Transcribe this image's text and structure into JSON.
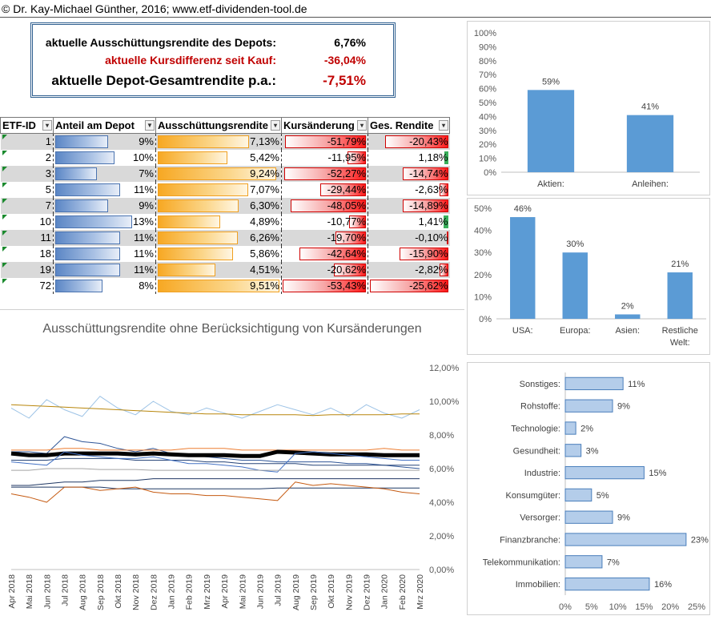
{
  "header": {
    "copyright": "© Dr. Kay-Michael Günther, 2016; www.etf-dividenden-tool.de"
  },
  "summary": {
    "rows": [
      {
        "label": "aktuelle Ausschüttungsrendite des Depots:",
        "value": "6,76%"
      },
      {
        "label": "aktuelle Kursdifferenz seit Kauf:",
        "value": "-36,04%"
      },
      {
        "label": "aktuelle Depot-Gesamtrendite p.a.:",
        "value": "-7,51%"
      }
    ]
  },
  "table": {
    "headers": [
      "ETF-ID",
      "Anteil am Depot",
      "Ausschüttungsrendite",
      "Kursänderung",
      "Ges. Rendite"
    ],
    "rows": [
      {
        "id": "1",
        "anteil": "9%",
        "anteil_v": 9,
        "aus": "7,13%",
        "aus_v": 7.13,
        "kurs": "-51,79%",
        "kurs_v": -51.79,
        "ges": "-20,43%",
        "ges_v": -20.43
      },
      {
        "id": "2",
        "anteil": "10%",
        "anteil_v": 10,
        "aus": "5,42%",
        "aus_v": 5.42,
        "kurs": "-11,95%",
        "kurs_v": -11.95,
        "ges": "1,18%",
        "ges_v": 1.18
      },
      {
        "id": "3",
        "anteil": "7%",
        "anteil_v": 7,
        "aus": "9,24%",
        "aus_v": 9.24,
        "kurs": "-52,27%",
        "kurs_v": -52.27,
        "ges": "-14,74%",
        "ges_v": -14.74
      },
      {
        "id": "5",
        "anteil": "11%",
        "anteil_v": 11,
        "aus": "7,07%",
        "aus_v": 7.07,
        "kurs": "-29,44%",
        "kurs_v": -29.44,
        "ges": "-2,63%",
        "ges_v": -2.63
      },
      {
        "id": "7",
        "anteil": "9%",
        "anteil_v": 9,
        "aus": "6,30%",
        "aus_v": 6.3,
        "kurs": "-48,05%",
        "kurs_v": -48.05,
        "ges": "-14,89%",
        "ges_v": -14.89
      },
      {
        "id": "10",
        "anteil": "13%",
        "anteil_v": 13,
        "aus": "4,89%",
        "aus_v": 4.89,
        "kurs": "-10,77%",
        "kurs_v": -10.77,
        "ges": "1,41%",
        "ges_v": 1.41
      },
      {
        "id": "11",
        "anteil": "11%",
        "anteil_v": 11,
        "aus": "6,26%",
        "aus_v": 6.26,
        "kurs": "-19,70%",
        "kurs_v": -19.7,
        "ges": "-0,10%",
        "ges_v": -0.1
      },
      {
        "id": "18",
        "anteil": "11%",
        "anteil_v": 11,
        "aus": "5,86%",
        "aus_v": 5.86,
        "kurs": "-42,64%",
        "kurs_v": -42.64,
        "ges": "-15,90%",
        "ges_v": -15.9
      },
      {
        "id": "19",
        "anteil": "11%",
        "anteil_v": 11,
        "aus": "4,51%",
        "aus_v": 4.51,
        "kurs": "-20,62%",
        "kurs_v": -20.62,
        "ges": "-2,82%",
        "ges_v": -2.82
      },
      {
        "id": "72",
        "anteil": "8%",
        "anteil_v": 8,
        "aus": "9,51%",
        "aus_v": 9.51,
        "kurs": "-53,43%",
        "kurs_v": -53.43,
        "ges": "-25,62%",
        "ges_v": -25.62
      }
    ]
  },
  "colors": {
    "bar_blue": "#5b9bd5",
    "line_black": "#000000",
    "negative_red": "#c00000"
  },
  "chart_data": [
    {
      "type": "bar",
      "categories": [
        "Aktien:",
        "Anleihen:"
      ],
      "values": [
        59,
        41
      ],
      "labels": [
        "59%",
        "41%"
      ],
      "ylim": [
        0,
        100
      ],
      "yticks": [
        "0%",
        "10%",
        "20%",
        "30%",
        "40%",
        "50%",
        "60%",
        "70%",
        "80%",
        "90%",
        "100%"
      ]
    },
    {
      "type": "bar",
      "categories": [
        "USA:",
        "Europa:",
        "Asien:",
        "Restliche Welt:"
      ],
      "values": [
        46,
        30,
        2,
        21
      ],
      "labels": [
        "46%",
        "30%",
        "2%",
        "21%"
      ],
      "ylim": [
        0,
        50
      ],
      "yticks": [
        "0%",
        "10%",
        "20%",
        "30%",
        "40%",
        "50%"
      ]
    },
    {
      "type": "bar",
      "orientation": "horizontal",
      "categories": [
        "Sonstiges:",
        "Rohstoffe:",
        "Technologie:",
        "Gesundheit:",
        "Industrie:",
        "Konsumgüter:",
        "Versorger:",
        "Finanzbranche:",
        "Telekommunikation:",
        "Immobilien:"
      ],
      "values": [
        11,
        9,
        2,
        3,
        15,
        5,
        9,
        23,
        7,
        16
      ],
      "labels": [
        "11%",
        "9%",
        "2%",
        "3%",
        "15%",
        "5%",
        "9%",
        "23%",
        "7%",
        "16%"
      ],
      "xlim": [
        0,
        25
      ],
      "xticks": [
        "0%",
        "5%",
        "10%",
        "15%",
        "20%",
        "25%"
      ]
    },
    {
      "type": "line",
      "title": "Ausschüttungsrendite ohne Berücksichtigung von Kursänderungen",
      "x": [
        "Apr 2018",
        "Mai 2018",
        "Jun 2018",
        "Jul 2018",
        "Aug 2018",
        "Sep 2018",
        "Okt 2018",
        "Nov 2018",
        "Dez 2018",
        "Jan 2019",
        "Feb 2019",
        "Mrz 2019",
        "Apr 2019",
        "Mai 2019",
        "Jun 2019",
        "Jul 2019",
        "Aug 2019",
        "Sep 2019",
        "Okt 2019",
        "Nov 2019",
        "Dez 2019",
        "Jan 2020",
        "Feb 2020",
        "Mrz 2020"
      ],
      "ylim": [
        0,
        12
      ],
      "yticks": [
        "0,00%",
        "2,00%",
        "4,00%",
        "6,00%",
        "8,00%",
        "10,00%",
        "12,00%"
      ],
      "series": [
        {
          "color": "#9dc3e6",
          "width": 1,
          "values": [
            9.6,
            9.0,
            10.1,
            9.5,
            9.1,
            10.3,
            9.6,
            9.2,
            10.0,
            9.4,
            9.2,
            9.6,
            9.3,
            9.0,
            9.4,
            9.8,
            9.5,
            9.2,
            9.6,
            9.1,
            9.8,
            9.3,
            9.0,
            9.5
          ]
        },
        {
          "color": "#b8860b",
          "width": 1,
          "values": [
            9.8,
            9.75,
            9.7,
            9.65,
            9.6,
            9.55,
            9.5,
            9.45,
            9.4,
            9.35,
            9.3,
            9.25,
            9.25,
            9.2,
            9.2,
            9.2,
            9.2,
            9.15,
            9.2,
            9.2,
            9.2,
            9.2,
            9.25,
            9.25
          ]
        },
        {
          "color": "#2e5597",
          "width": 1,
          "values": [
            7.0,
            7.0,
            6.9,
            7.9,
            7.6,
            7.5,
            7.2,
            7.0,
            7.2,
            6.9,
            6.8,
            6.7,
            6.6,
            6.5,
            6.5,
            6.4,
            6.4,
            6.4,
            6.4,
            6.3,
            6.3,
            6.2,
            6.1,
            6.0
          ]
        },
        {
          "color": "#ed7d31",
          "width": 1,
          "values": [
            7.1,
            7.1,
            7.1,
            7.2,
            7.2,
            7.1,
            7.1,
            7.1,
            7.1,
            7.1,
            7.2,
            7.2,
            7.2,
            7.1,
            7.1,
            7.1,
            7.1,
            7.1,
            7.1,
            7.1,
            7.1,
            7.2,
            7.1,
            7.1
          ]
        },
        {
          "color": "#000000",
          "width": 5,
          "values": [
            6.9,
            6.8,
            6.8,
            6.9,
            6.9,
            6.9,
            6.9,
            6.85,
            6.9,
            6.85,
            6.8,
            6.8,
            6.8,
            6.75,
            6.75,
            7.0,
            6.95,
            6.9,
            6.85,
            6.85,
            6.85,
            6.8,
            6.8,
            6.8
          ]
        },
        {
          "color": "#264478",
          "width": 1,
          "values": [
            6.5,
            6.5,
            6.5,
            6.6,
            6.6,
            6.6,
            6.6,
            6.5,
            6.5,
            6.5,
            6.5,
            6.4,
            6.4,
            6.3,
            6.3,
            6.3,
            6.3,
            6.2,
            6.2,
            6.2,
            6.2,
            6.2,
            6.2,
            6.2
          ]
        },
        {
          "color": "#4472c4",
          "width": 1,
          "values": [
            6.4,
            6.3,
            6.2,
            7.0,
            6.8,
            6.7,
            6.6,
            6.6,
            6.7,
            6.5,
            6.3,
            6.3,
            6.2,
            6.1,
            5.9,
            5.8,
            6.9,
            7.0,
            6.9,
            6.8,
            6.7,
            6.6,
            6.5,
            6.5
          ]
        },
        {
          "color": "#a5a5a5",
          "width": 1,
          "values": [
            5.9,
            5.9,
            6.0,
            6.0,
            6.0,
            5.95,
            5.95,
            5.95,
            5.9,
            5.9,
            5.9,
            5.9,
            5.9,
            5.9,
            5.9,
            5.9,
            5.9,
            5.9,
            5.9,
            5.9,
            5.9,
            5.9,
            5.9,
            5.9
          ]
        },
        {
          "color": "#203864",
          "width": 1,
          "values": [
            5.0,
            5.0,
            5.1,
            5.2,
            5.2,
            5.3,
            5.3,
            5.3,
            5.4,
            5.4,
            5.4,
            5.4,
            5.4,
            5.4,
            5.4,
            5.4,
            5.4,
            5.4,
            5.4,
            5.4,
            5.4,
            5.4,
            5.4,
            5.4
          ]
        },
        {
          "color": "#1f3864",
          "width": 1,
          "values": [
            4.9,
            4.9,
            4.9,
            4.9,
            4.9,
            4.9,
            4.8,
            4.8,
            4.8,
            4.8,
            4.8,
            4.8,
            4.8,
            4.8,
            4.8,
            4.85,
            4.85,
            4.85,
            4.85,
            4.85,
            4.85,
            4.85,
            4.85,
            4.85
          ]
        },
        {
          "color": "#c55a11",
          "width": 1,
          "values": [
            4.5,
            4.3,
            4.0,
            4.9,
            4.9,
            4.7,
            4.8,
            4.9,
            4.6,
            4.5,
            4.5,
            4.4,
            4.4,
            4.3,
            4.2,
            4.1,
            5.2,
            5.0,
            5.1,
            5.0,
            4.9,
            4.8,
            4.6,
            4.5
          ]
        }
      ]
    }
  ]
}
